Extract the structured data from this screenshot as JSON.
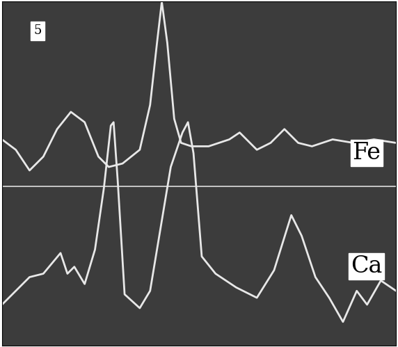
{
  "chart_data": {
    "type": "line",
    "title": "5",
    "tick_labels": false,
    "xlim": [
      0,
      572
    ],
    "ylim": [
      0,
      499
    ],
    "series": [
      {
        "name": "Fe",
        "color": "#e8e8e8",
        "x": [
          0,
          20,
          40,
          60,
          80,
          100,
          120,
          140,
          155,
          175,
          200,
          215,
          225,
          232,
          240,
          250,
          260,
          275,
          300,
          330,
          345,
          370,
          390,
          410,
          430,
          450,
          480,
          510,
          540,
          572
        ],
        "values": [
          299,
          284,
          254,
          274,
          314,
          339,
          324,
          274,
          259,
          264,
          284,
          349,
          439,
          499,
          439,
          329,
          294,
          289,
          289,
          299,
          309,
          284,
          294,
          314,
          294,
          289,
          299,
          294,
          299,
          294
        ]
      },
      {
        "name": "Ca",
        "color": "#e8e8e8",
        "x": [
          0,
          20,
          40,
          60,
          85,
          95,
          105,
          120,
          135,
          148,
          158,
          162,
          168,
          178,
          200,
          215,
          230,
          245,
          262,
          270,
          278,
          290,
          310,
          340,
          370,
          395,
          420,
          435,
          455,
          475,
          495,
          515,
          530,
          550,
          572
        ],
        "values": [
          59,
          79,
          99,
          104,
          134,
          104,
          114,
          89,
          139,
          229,
          319,
          324,
          239,
          74,
          54,
          79,
          169,
          259,
          309,
          324,
          279,
          129,
          104,
          84,
          69,
          109,
          189,
          159,
          99,
          69,
          34,
          79,
          59,
          94,
          79
        ]
      }
    ]
  }
}
